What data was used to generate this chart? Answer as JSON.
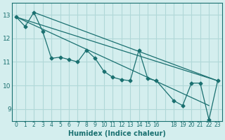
{
  "xlabel": "Humidex (Indice chaleur)",
  "background_color": "#d4eeee",
  "grid_color": "#b0d8d8",
  "line_color": "#1a7070",
  "xlim": [
    -0.5,
    23.5
  ],
  "ylim": [
    8.5,
    13.5
  ],
  "yticks": [
    9,
    10,
    11,
    12,
    13
  ],
  "xticks": [
    0,
    1,
    2,
    3,
    4,
    5,
    6,
    7,
    8,
    9,
    10,
    11,
    12,
    13,
    14,
    15,
    16,
    17,
    18,
    19,
    20,
    21,
    22,
    23
  ],
  "xtick_labels": [
    "0",
    "1",
    "2",
    "3",
    "4",
    "5",
    "6",
    "7",
    "8",
    "9",
    "10",
    "11",
    "12",
    "13",
    "14",
    "15",
    "16",
    "",
    "18",
    "19",
    "20",
    "21",
    "22",
    "23"
  ],
  "series1_x": [
    0,
    1,
    2,
    3,
    4,
    5,
    6,
    7,
    8,
    9,
    10,
    11,
    12,
    13,
    14,
    15,
    16,
    18,
    19,
    20,
    21,
    22,
    23
  ],
  "series1_y": [
    12.9,
    12.5,
    13.1,
    12.3,
    11.15,
    11.2,
    11.1,
    11.0,
    11.5,
    11.15,
    10.6,
    10.35,
    10.25,
    10.2,
    11.5,
    10.3,
    10.2,
    9.35,
    9.15,
    10.1,
    10.1,
    8.55,
    10.2
  ],
  "trend1_x": [
    0,
    23
  ],
  "trend1_y": [
    12.9,
    10.2
  ],
  "trend2_x": [
    2,
    23
  ],
  "trend2_y": [
    13.1,
    10.2
  ],
  "trend3_x": [
    0,
    22
  ],
  "trend3_y": [
    12.9,
    9.15
  ]
}
